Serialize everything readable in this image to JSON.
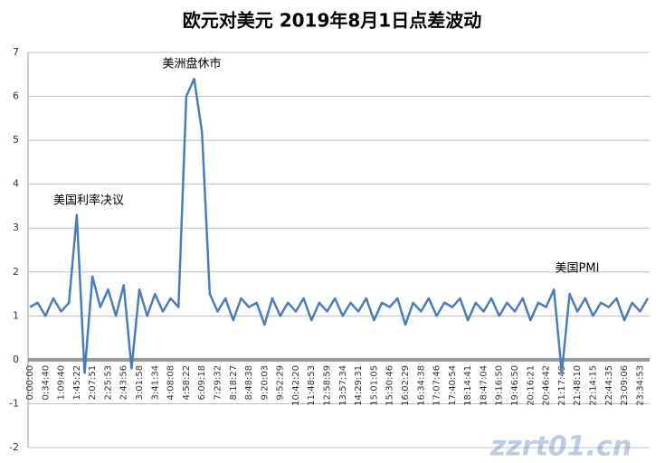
{
  "chart_data": {
    "type": "line",
    "title": "欧元对美元 2019年8月1日点差波动",
    "categories": [
      "0:00:00",
      null,
      "0:34:40",
      null,
      "1:09:40",
      null,
      "1:45:22",
      null,
      "2:07:51",
      null,
      "2:25:53",
      null,
      "2:43:56",
      null,
      "3:01:58",
      null,
      "3:41:34",
      null,
      "4:08:08",
      null,
      "4:58:22",
      null,
      "6:09:18",
      null,
      "7:29:32",
      null,
      "8:18:27",
      null,
      "8:48:38",
      null,
      "9:20:03",
      null,
      "9:52:29",
      null,
      "10:42:20",
      null,
      "11:48:53",
      null,
      "12:58:59",
      null,
      "13:57:34",
      null,
      "14:29:31",
      null,
      "15:01:05",
      null,
      "15:30:46",
      null,
      "16:02:29",
      null,
      "16:34:38",
      null,
      "17:07:46",
      null,
      "17:40:54",
      null,
      "18:14:41",
      null,
      "18:47:04",
      null,
      "19:16:50",
      null,
      "19:46:50",
      null,
      "20:16:21",
      null,
      "20:46:42",
      null,
      "21:17:49",
      null,
      "21:48:10",
      null,
      "22:14:15",
      null,
      "22:44:35",
      null,
      "23:09:06",
      null,
      "23:34:53",
      null
    ],
    "series": [
      {
        "color": "#4a7ebb",
        "values": [
          1.2,
          1.3,
          1.0,
          1.4,
          1.1,
          1.3,
          3.3,
          -0.3,
          1.9,
          1.2,
          1.6,
          1.0,
          1.7,
          -0.2,
          1.6,
          1.0,
          1.5,
          1.1,
          1.4,
          1.2,
          6.0,
          6.4,
          5.2,
          1.5,
          1.1,
          1.4,
          0.9,
          1.4,
          1.2,
          1.3,
          0.8,
          1.4,
          1.0,
          1.3,
          1.1,
          1.4,
          0.9,
          1.3,
          1.1,
          1.4,
          1.0,
          1.3,
          1.1,
          1.4,
          0.9,
          1.3,
          1.2,
          1.4,
          0.8,
          1.3,
          1.1,
          1.4,
          1.0,
          1.3,
          1.2,
          1.4,
          0.9,
          1.3,
          1.1,
          1.4,
          1.0,
          1.3,
          1.1,
          1.4,
          0.9,
          1.3,
          1.2,
          1.6,
          -0.3,
          1.5,
          1.1,
          1.4,
          1.0,
          1.3,
          1.2,
          1.4,
          0.9,
          1.3,
          1.1,
          1.4
        ]
      }
    ],
    "ylim": [
      -2,
      7
    ],
    "yticks": [
      -2,
      -1,
      0,
      1,
      2,
      3,
      4,
      5,
      6,
      7
    ],
    "grid": true,
    "annotations": [
      "美国利率决议",
      "美洲盘休市",
      "美国PMI"
    ],
    "watermark": "zzrt01.cn"
  }
}
